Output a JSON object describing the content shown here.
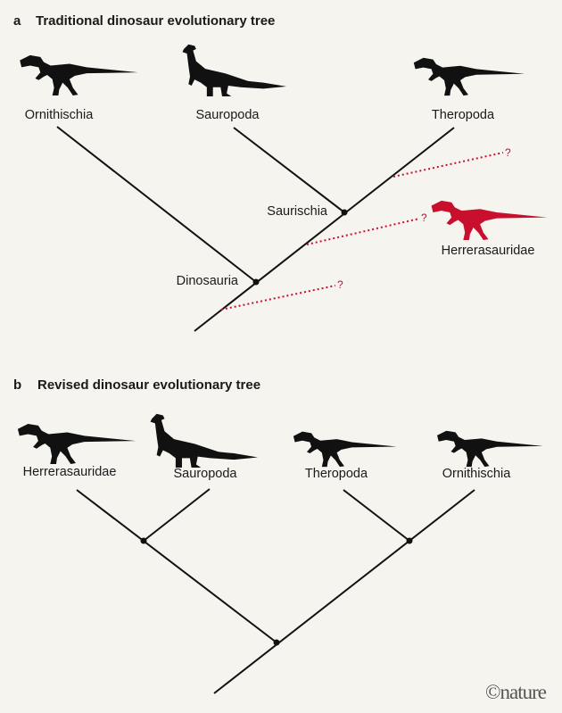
{
  "colors": {
    "background": "#f6f4ee",
    "ink": "#111111",
    "highlight": "#c8102e"
  },
  "panel_a": {
    "letter": "a",
    "title": "Traditional dinosaur evolutionary tree",
    "taxa": [
      "Ornithischia",
      "Sauropoda",
      "Theropoda"
    ],
    "highlighted_taxon": "Herrerasauridae",
    "nodes": [
      "Saurischia",
      "Dinosauria"
    ],
    "uncertain_marker": "?"
  },
  "panel_b": {
    "letter": "b",
    "title": "Revised dinosaur evolutionary tree",
    "taxa": [
      "Herrerasauridae",
      "Sauropoda",
      "Theropoda",
      "Ornithischia"
    ]
  },
  "logo": "©nature"
}
